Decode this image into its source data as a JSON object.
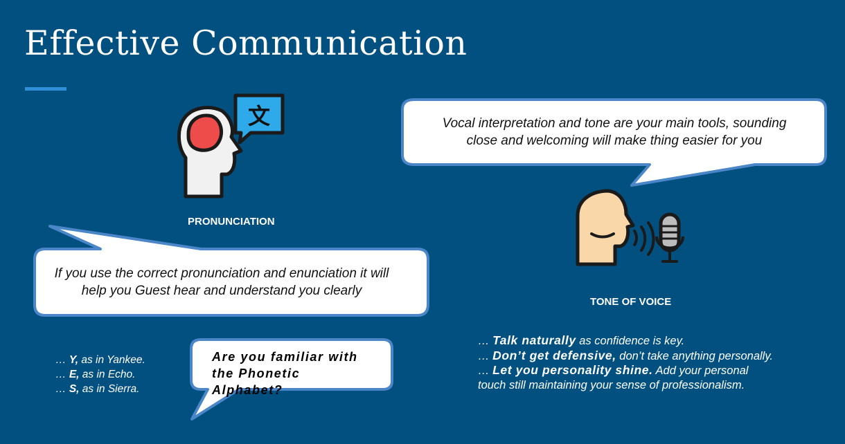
{
  "title": "Effective Communication",
  "pronunciation": {
    "label": "PRONUNCIATION",
    "bubble_line1": "If you use the correct pronunciation and enunciation it will",
    "bubble_line2": "help you Guest hear and understand you clearly",
    "glyph": "文"
  },
  "tone": {
    "label": "TONE OF VOICE",
    "bubble_line1": "Vocal interpretation and tone are your main tools, sounding",
    "bubble_line2": "close and welcoming will make thing easier for you"
  },
  "phonetic": {
    "question": "Are you familiar with\n  the Phonetic\n    Alphabet?",
    "examples": [
      {
        "prefix": "… ",
        "letter": "Y,",
        "text": " as in Yankee."
      },
      {
        "prefix": "… ",
        "letter": "E,",
        "text": " as in Echo."
      },
      {
        "prefix": "… ",
        "letter": "S,",
        "text": " as in Sierra."
      }
    ]
  },
  "tips": [
    {
      "prefix": "… ",
      "bold": "Talk naturally",
      "text": " as confidence is key."
    },
    {
      "prefix": "… ",
      "bold": "Don’t get defensive,",
      "text": " don’t take anything personally."
    },
    {
      "prefix": "… ",
      "bold": "Let you personality shine.",
      "text": " Add your  personal"
    },
    {
      "prefix": "",
      "bold": "",
      "text": "touch still maintaining your sense of professionalism."
    }
  ],
  "colors": {
    "background": "#02507f",
    "accent": "#2f8fd6",
    "bubble_border": "#4a86c8",
    "head_red": "#ee4b4b",
    "head_skin": "#f9d7a8",
    "speech_blue": "#2ea9ea"
  }
}
